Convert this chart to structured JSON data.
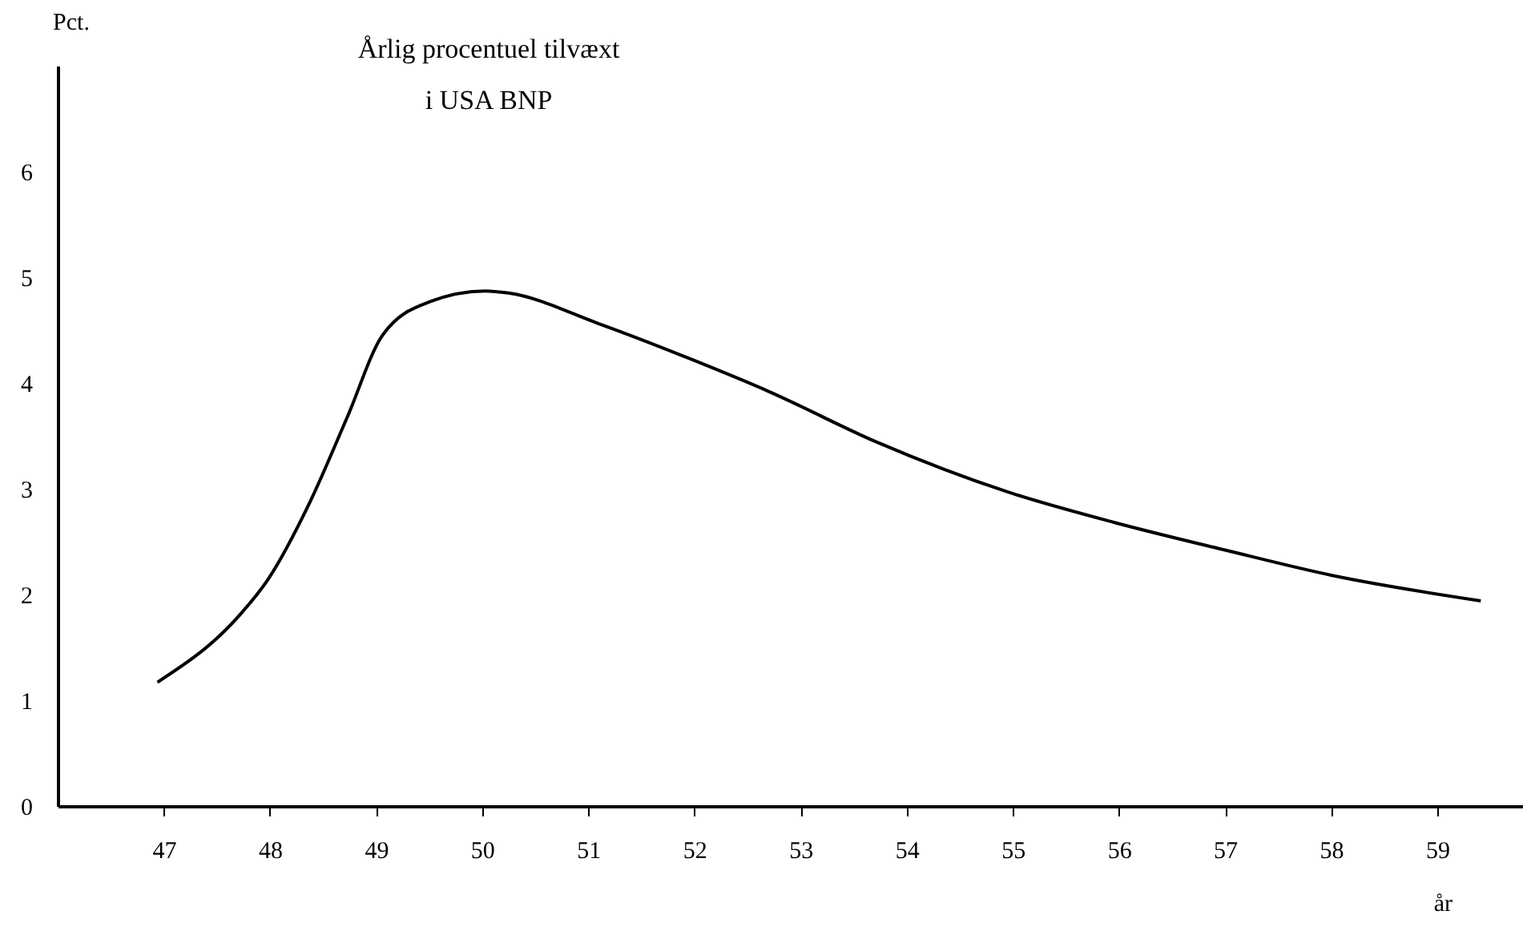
{
  "chart_data": {
    "type": "line",
    "title": [
      "Årlig procentuel tilvæxt",
      "i USA BNP"
    ],
    "xlabel": "år",
    "ylabel": "Pct.",
    "x": [
      46.94,
      47.71,
      47.98,
      48.38,
      48.73,
      49.06,
      49.51,
      50.03,
      50.25,
      51.1,
      51.98,
      52.7,
      53.72,
      54.95,
      55.96,
      57.0,
      58.01,
      59.41
    ],
    "series": [
      {
        "color": "#000000",
        "values": [
          1.17,
          1.8,
          2.14,
          2.88,
          3.68,
          4.45,
          4.77,
          4.87,
          4.85,
          4.56,
          4.22,
          3.92,
          3.44,
          2.97,
          2.68,
          2.42,
          2.18,
          1.94
        ]
      }
    ],
    "xlim": [
      46,
      59.8
    ],
    "ylim": [
      0,
      7
    ],
    "xticks": [
      47,
      48,
      49,
      50,
      51,
      52,
      53,
      54,
      55,
      56,
      57,
      58,
      59
    ],
    "yticks": [
      0,
      1,
      2,
      3,
      4,
      5,
      6
    ],
    "grid": false,
    "marker": "none",
    "line_style": "solid"
  }
}
